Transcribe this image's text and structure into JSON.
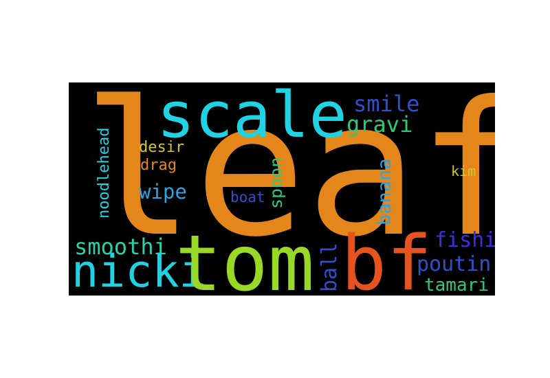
{
  "colors": {
    "background": "#000000",
    "orange": "#e5861a",
    "cyan": "#1fd3e3",
    "lime": "#9ad826",
    "red_orange": "#e6531e",
    "blue": "#2f4fd3",
    "violet": "#3c2fd9",
    "green": "#2fc878",
    "teal": "#2bd1a9",
    "olive": "#d3c72a",
    "sky": "#2ba4e1"
  },
  "words": {
    "leaf": "leaf",
    "scale": "scale",
    "tom": "tom",
    "bf": "bf",
    "nicki": "nicki",
    "smile": "smile",
    "gravi": "gravi",
    "desir": "desir",
    "drag": "drag",
    "noodlehead": "noodlehead",
    "spoon": "spoon",
    "banana": "banana",
    "kim": "kim",
    "wipe": "wipe",
    "boat": "boat",
    "smoothi": "smoothi",
    "ball": "ball",
    "fishi": "fishi",
    "poutin": "poutin",
    "tamari": "tamari"
  }
}
